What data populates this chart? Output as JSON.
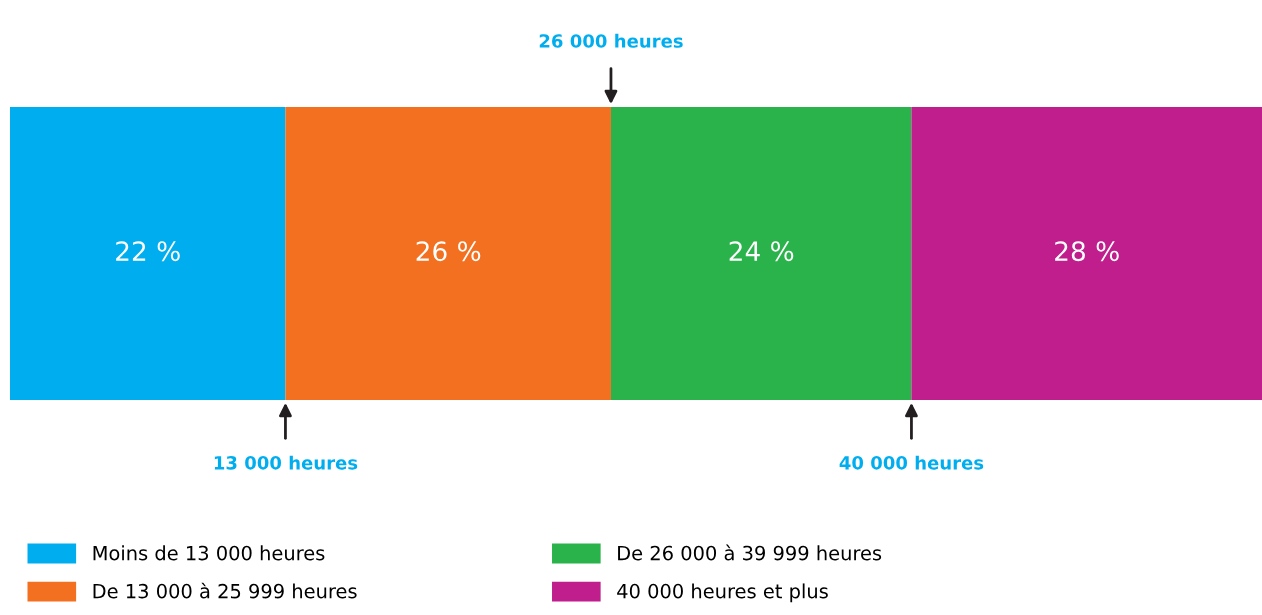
{
  "chart_data": {
    "type": "bar",
    "orientation": "horizontal",
    "stacked": true,
    "categories": [
      null
    ],
    "series": [
      {
        "name": "Moins de 13 000 heures",
        "color": "#00aeef",
        "values": [
          22
        ],
        "value_labels": [
          "22 %"
        ]
      },
      {
        "name": "De 13 000 à 25 999 heures",
        "color": "#f37021",
        "values": [
          26
        ],
        "value_labels": [
          "26 %"
        ]
      },
      {
        "name": "De 26 000 à 39 999 heures",
        "color": "#2ab24b",
        "values": [
          24
        ],
        "value_labels": [
          "24 %"
        ]
      },
      {
        "name": "40 000 heures et plus",
        "color": "#bf1e8c",
        "values": [
          28
        ],
        "value_labels": [
          "28 %"
        ]
      }
    ],
    "xlim": [
      0,
      100
    ],
    "tick_labels": false,
    "legend": "bottom",
    "annotations": [
      "13 000 heures",
      "26 000 heures",
      "40 000 heures"
    ]
  }
}
